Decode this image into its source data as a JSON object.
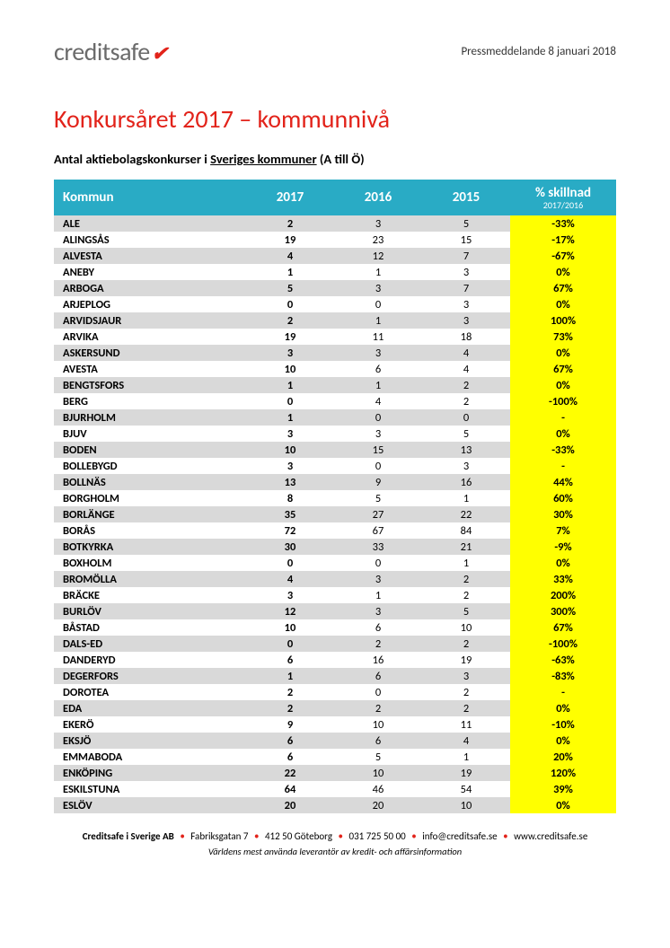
{
  "header": {
    "logo_text": "creditsafe",
    "logo_accent": "✔",
    "press_date": "Pressmeddelande 8 januari 2018"
  },
  "title": "Konkursåret 2017 – kommunnivå",
  "subtitle_prefix": "Antal aktiebolagskonkurser i ",
  "subtitle_underline": "Sveriges kommuner",
  "subtitle_suffix": " (A till Ö)",
  "table": {
    "headers": {
      "kommun": "Kommun",
      "y2017": "2017",
      "y2016": "2016",
      "y2015": "2015",
      "diff": "% skillnad",
      "diff_sub": "2017/2016"
    },
    "rows": [
      {
        "name": "ALE",
        "y17": "2",
        "y16": "3",
        "y15": "5",
        "diff": "-33%"
      },
      {
        "name": "ALINGSÅS",
        "y17": "19",
        "y16": "23",
        "y15": "15",
        "diff": "-17%"
      },
      {
        "name": "ALVESTA",
        "y17": "4",
        "y16": "12",
        "y15": "7",
        "diff": "-67%"
      },
      {
        "name": "ANEBY",
        "y17": "1",
        "y16": "1",
        "y15": "3",
        "diff": "0%"
      },
      {
        "name": "ARBOGA",
        "y17": "5",
        "y16": "3",
        "y15": "7",
        "diff": "67%"
      },
      {
        "name": "ARJEPLOG",
        "y17": "0",
        "y16": "0",
        "y15": "3",
        "diff": "0%"
      },
      {
        "name": "ARVIDSJAUR",
        "y17": "2",
        "y16": "1",
        "y15": "3",
        "diff": "100%"
      },
      {
        "name": "ARVIKA",
        "y17": "19",
        "y16": "11",
        "y15": "18",
        "diff": "73%"
      },
      {
        "name": "ASKERSUND",
        "y17": "3",
        "y16": "3",
        "y15": "4",
        "diff": "0%"
      },
      {
        "name": "AVESTA",
        "y17": "10",
        "y16": "6",
        "y15": "4",
        "diff": "67%"
      },
      {
        "name": "BENGTSFORS",
        "y17": "1",
        "y16": "1",
        "y15": "2",
        "diff": "0%"
      },
      {
        "name": "BERG",
        "y17": "0",
        "y16": "4",
        "y15": "2",
        "diff": "-100%"
      },
      {
        "name": "BJURHOLM",
        "y17": "1",
        "y16": "0",
        "y15": "0",
        "diff": "-"
      },
      {
        "name": "BJUV",
        "y17": "3",
        "y16": "3",
        "y15": "5",
        "diff": "0%"
      },
      {
        "name": "BODEN",
        "y17": "10",
        "y16": "15",
        "y15": "13",
        "diff": "-33%"
      },
      {
        "name": "BOLLEBYGD",
        "y17": "3",
        "y16": "0",
        "y15": "3",
        "diff": "-"
      },
      {
        "name": "BOLLNÄS",
        "y17": "13",
        "y16": "9",
        "y15": "16",
        "diff": "44%"
      },
      {
        "name": "BORGHOLM",
        "y17": "8",
        "y16": "5",
        "y15": "1",
        "diff": "60%"
      },
      {
        "name": "BORLÄNGE",
        "y17": "35",
        "y16": "27",
        "y15": "22",
        "diff": "30%"
      },
      {
        "name": "BORÅS",
        "y17": "72",
        "y16": "67",
        "y15": "84",
        "diff": "7%"
      },
      {
        "name": "BOTKYRKA",
        "y17": "30",
        "y16": "33",
        "y15": "21",
        "diff": "-9%"
      },
      {
        "name": "BOXHOLM",
        "y17": "0",
        "y16": "0",
        "y15": "1",
        "diff": "0%"
      },
      {
        "name": "BROMÖLLA",
        "y17": "4",
        "y16": "3",
        "y15": "2",
        "diff": "33%"
      },
      {
        "name": "BRÄCKE",
        "y17": "3",
        "y16": "1",
        "y15": "2",
        "diff": "200%"
      },
      {
        "name": "BURLÖV",
        "y17": "12",
        "y16": "3",
        "y15": "5",
        "diff": "300%"
      },
      {
        "name": "BÅSTAD",
        "y17": "10",
        "y16": "6",
        "y15": "10",
        "diff": "67%"
      },
      {
        "name": "DALS-ED",
        "y17": "0",
        "y16": "2",
        "y15": "2",
        "diff": "-100%"
      },
      {
        "name": "DANDERYD",
        "y17": "6",
        "y16": "16",
        "y15": "19",
        "diff": "-63%"
      },
      {
        "name": "DEGERFORS",
        "y17": "1",
        "y16": "6",
        "y15": "3",
        "diff": "-83%"
      },
      {
        "name": "DOROTEA",
        "y17": "2",
        "y16": "0",
        "y15": "2",
        "diff": "-"
      },
      {
        "name": "EDA",
        "y17": "2",
        "y16": "2",
        "y15": "2",
        "diff": "0%"
      },
      {
        "name": "EKERÖ",
        "y17": "9",
        "y16": "10",
        "y15": "11",
        "diff": "-10%"
      },
      {
        "name": "EKSJÖ",
        "y17": "6",
        "y16": "6",
        "y15": "4",
        "diff": "0%"
      },
      {
        "name": "EMMABODA",
        "y17": "6",
        "y16": "5",
        "y15": "1",
        "diff": "20%"
      },
      {
        "name": "ENKÖPING",
        "y17": "22",
        "y16": "10",
        "y15": "19",
        "diff": "120%"
      },
      {
        "name": "ESKILSTUNA",
        "y17": "64",
        "y16": "46",
        "y15": "54",
        "diff": "39%"
      },
      {
        "name": "ESLÖV",
        "y17": "20",
        "y16": "20",
        "y15": "10",
        "diff": "0%"
      }
    ]
  },
  "footer": {
    "company": "Creditsafe i Sverige AB",
    "address": "Fabriksgatan 7",
    "postal": "412 50 Göteborg",
    "phone": "031 725 50 00",
    "email": "info@creditsafe.se",
    "web": "www.creditsafe.se",
    "tagline": "Världens mest använda leverantör av kredit- och affärsinformation"
  }
}
